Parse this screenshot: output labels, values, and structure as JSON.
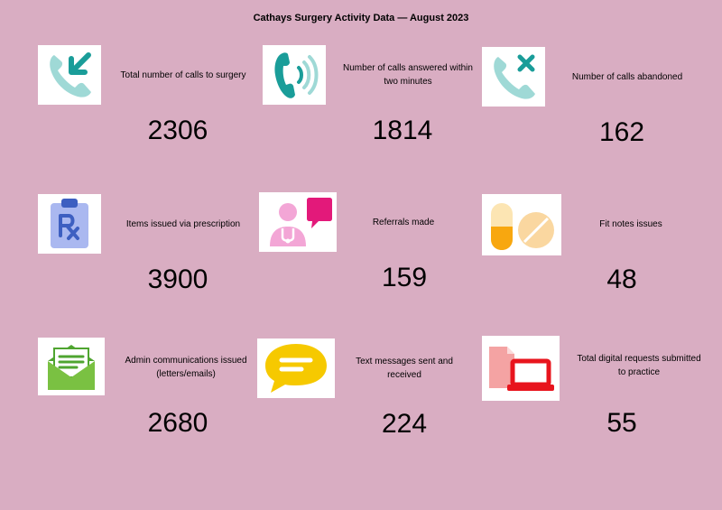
{
  "title": "Cathays Surgery Activity Data — August 2023",
  "colors": {
    "background": "#d9adc2",
    "teal": "#1a9d99",
    "light_teal": "#9fd9d6",
    "blue": "#3d5fc1",
    "pink": "#f3a6d6",
    "magenta": "#e3197a",
    "orange": "#f8a70f",
    "green": "#7ac142",
    "yellow": "#f6c900",
    "red": "#e8141d",
    "salmon": "#f4a3a3"
  },
  "cards": [
    {
      "icon": "phone-incoming-icon",
      "label": "Total number of calls to surgery",
      "value": "2306"
    },
    {
      "icon": "phone-ringing-icon",
      "label": "Number of calls answered within two minutes",
      "value": "1814"
    },
    {
      "icon": "phone-missed-icon",
      "label": "Number of calls abandoned",
      "value": "162"
    },
    {
      "icon": "prescription-clipboard-icon",
      "label": "Items issued via prescription",
      "value": "3900"
    },
    {
      "icon": "doctor-referral-icon",
      "label": "Referrals made",
      "value": "159"
    },
    {
      "icon": "pills-icon",
      "label": "Fit notes issues",
      "value": "48"
    },
    {
      "icon": "envelope-letter-icon",
      "label": "Admin communications issued (letters/emails)",
      "value": "2680"
    },
    {
      "icon": "speech-bubble-icon",
      "label": "Text messages sent and received",
      "value": "224"
    },
    {
      "icon": "digital-request-icon",
      "label": "Total digital requests submitted to practice",
      "value": "55"
    }
  ]
}
